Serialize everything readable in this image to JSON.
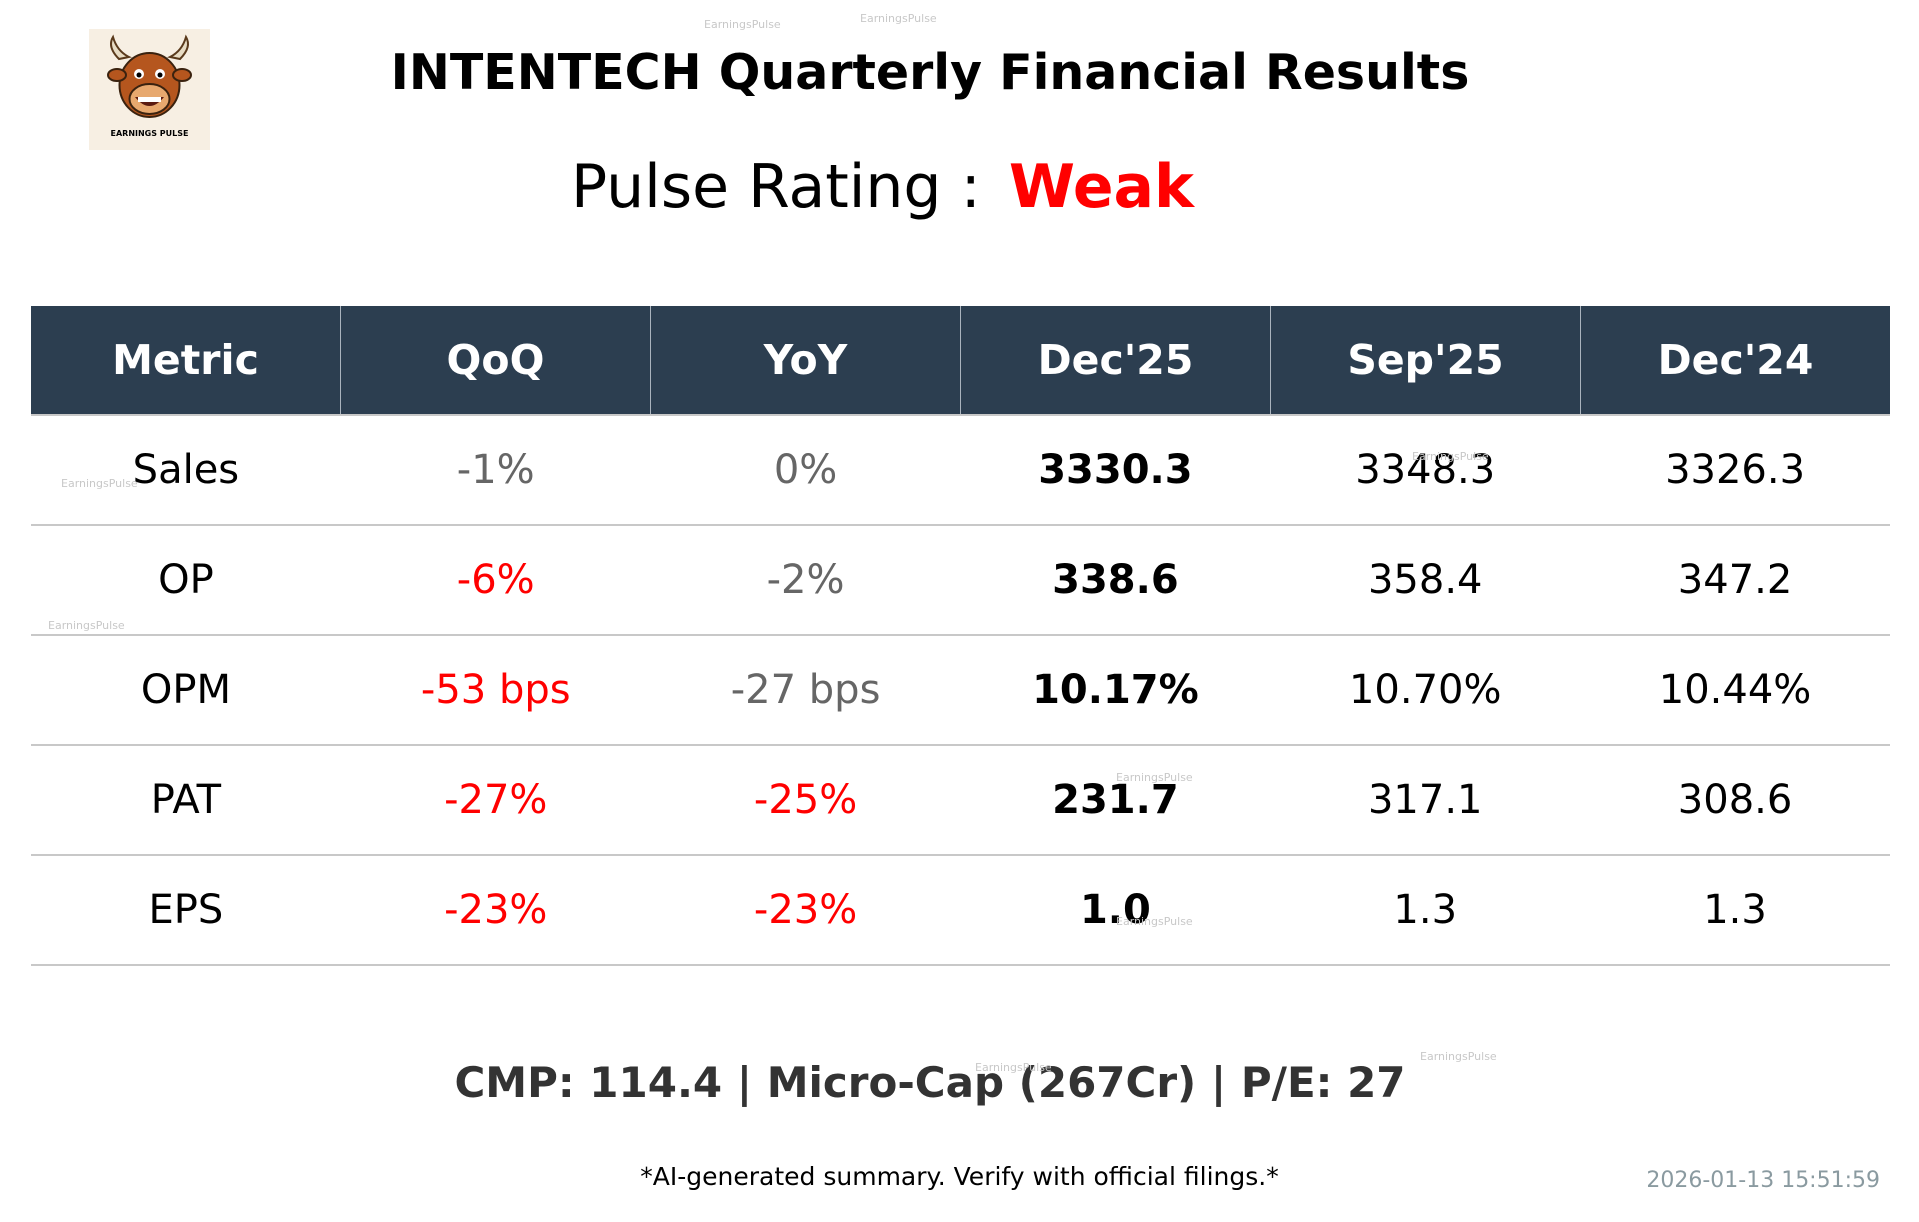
{
  "logo_text": "EARNINGS PULSE",
  "watermark": "EarningsPulse",
  "header": {
    "title": "INTENTECH Quarterly Financial Results"
  },
  "rating": {
    "label": "Pulse Rating :",
    "value": "Weak",
    "color": "#ff0000"
  },
  "table": {
    "header_color": "#2c3e50",
    "columns": [
      "Metric",
      "QoQ",
      "YoY",
      "Dec'25",
      "Sep'25",
      "Dec'24"
    ],
    "rows": [
      {
        "cells": [
          "Sales",
          "-1%",
          "0%",
          "3330.3",
          "3348.3",
          "3326.3"
        ],
        "change_colors": [
          "#666666",
          "#666666"
        ]
      },
      {
        "cells": [
          "OP",
          "-6%",
          "-2%",
          "338.6",
          "358.4",
          "347.2"
        ],
        "change_colors": [
          "#ff0000",
          "#666666"
        ]
      },
      {
        "cells": [
          "OPM",
          "-53 bps",
          "-27 bps",
          "10.17%",
          "10.70%",
          "10.44%"
        ],
        "change_colors": [
          "#ff0000",
          "#666666"
        ]
      },
      {
        "cells": [
          "PAT",
          "-27%",
          "-25%",
          "231.7",
          "317.1",
          "308.6"
        ],
        "change_colors": [
          "#ff0000",
          "#ff0000"
        ]
      },
      {
        "cells": [
          "EPS",
          "-23%",
          "-23%",
          "1.0",
          "1.3",
          "1.3"
        ],
        "change_colors": [
          "#ff0000",
          "#ff0000"
        ]
      }
    ]
  },
  "footer": {
    "summary": "CMP: 114.4 | Micro-Cap (267Cr) | P/E: 27",
    "disclaimer": "*AI-generated summary. Verify with official filings.*",
    "timestamp": "2026-01-13 15:51:59"
  }
}
